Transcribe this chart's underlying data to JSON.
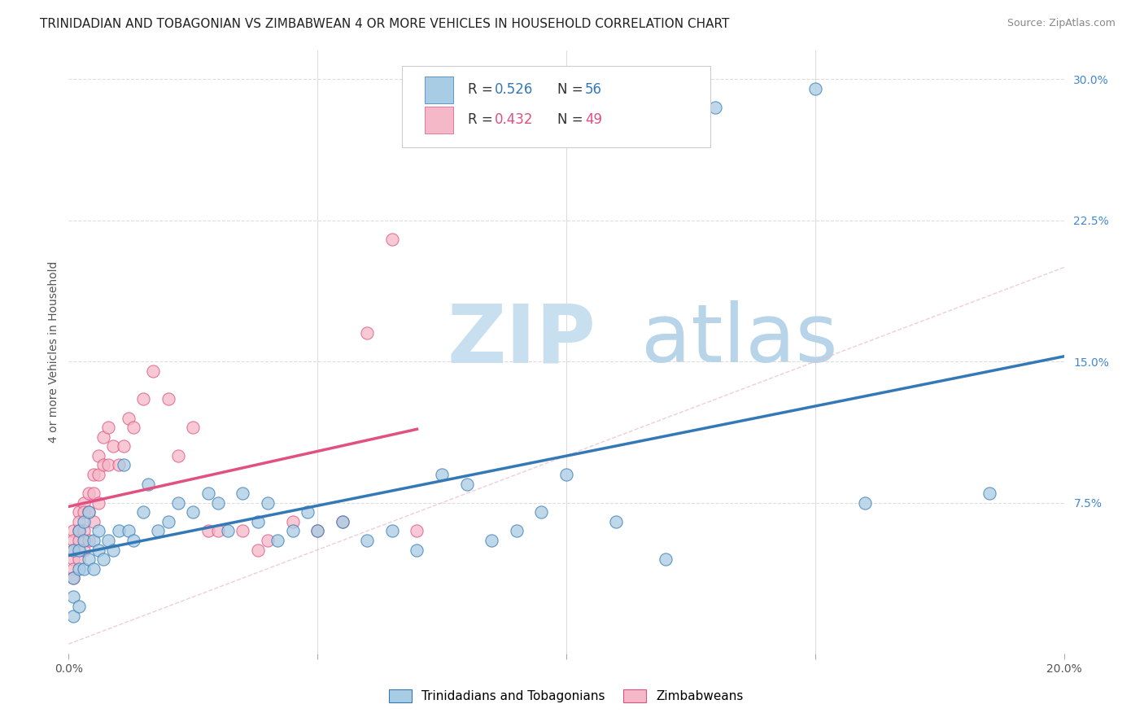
{
  "title": "TRINIDADIAN AND TOBAGONIAN VS ZIMBABWEAN 4 OR MORE VEHICLES IN HOUSEHOLD CORRELATION CHART",
  "source": "Source: ZipAtlas.com",
  "ylabel": "4 or more Vehicles in Household",
  "xlim": [
    0.0,
    0.2
  ],
  "ylim": [
    -0.005,
    0.315
  ],
  "blue_R": 0.526,
  "blue_N": 56,
  "pink_R": 0.432,
  "pink_N": 49,
  "blue_color": "#a8cce4",
  "blue_line_color": "#3478b5",
  "pink_color": "#f4b8c8",
  "pink_line_color": "#e05080",
  "blue_label": "Trinidadians and Tobagonians",
  "pink_label": "Zimbabweans",
  "blue_scatter_x": [
    0.001,
    0.001,
    0.001,
    0.001,
    0.002,
    0.002,
    0.002,
    0.002,
    0.003,
    0.003,
    0.003,
    0.004,
    0.004,
    0.005,
    0.005,
    0.006,
    0.006,
    0.007,
    0.008,
    0.009,
    0.01,
    0.011,
    0.012,
    0.013,
    0.015,
    0.016,
    0.018,
    0.02,
    0.022,
    0.025,
    0.028,
    0.03,
    0.032,
    0.035,
    0.038,
    0.04,
    0.042,
    0.045,
    0.048,
    0.05,
    0.055,
    0.06,
    0.065,
    0.07,
    0.075,
    0.08,
    0.085,
    0.09,
    0.095,
    0.1,
    0.11,
    0.12,
    0.13,
    0.15,
    0.16,
    0.185
  ],
  "blue_scatter_y": [
    0.05,
    0.035,
    0.025,
    0.015,
    0.06,
    0.05,
    0.04,
    0.02,
    0.065,
    0.055,
    0.04,
    0.07,
    0.045,
    0.055,
    0.04,
    0.06,
    0.05,
    0.045,
    0.055,
    0.05,
    0.06,
    0.095,
    0.06,
    0.055,
    0.07,
    0.085,
    0.06,
    0.065,
    0.075,
    0.07,
    0.08,
    0.075,
    0.06,
    0.08,
    0.065,
    0.075,
    0.055,
    0.06,
    0.07,
    0.06,
    0.065,
    0.055,
    0.06,
    0.05,
    0.09,
    0.085,
    0.055,
    0.06,
    0.07,
    0.09,
    0.065,
    0.045,
    0.285,
    0.295,
    0.075,
    0.08
  ],
  "pink_scatter_x": [
    0.001,
    0.001,
    0.001,
    0.001,
    0.001,
    0.001,
    0.002,
    0.002,
    0.002,
    0.002,
    0.002,
    0.003,
    0.003,
    0.003,
    0.003,
    0.004,
    0.004,
    0.004,
    0.005,
    0.005,
    0.005,
    0.006,
    0.006,
    0.006,
    0.007,
    0.007,
    0.008,
    0.008,
    0.009,
    0.01,
    0.011,
    0.012,
    0.013,
    0.015,
    0.017,
    0.02,
    0.022,
    0.025,
    0.028,
    0.03,
    0.035,
    0.038,
    0.04,
    0.045,
    0.05,
    0.055,
    0.06,
    0.065,
    0.07
  ],
  "pink_scatter_y": [
    0.06,
    0.055,
    0.05,
    0.045,
    0.04,
    0.035,
    0.07,
    0.065,
    0.06,
    0.055,
    0.045,
    0.075,
    0.07,
    0.06,
    0.05,
    0.08,
    0.07,
    0.055,
    0.09,
    0.08,
    0.065,
    0.1,
    0.09,
    0.075,
    0.11,
    0.095,
    0.115,
    0.095,
    0.105,
    0.095,
    0.105,
    0.12,
    0.115,
    0.13,
    0.145,
    0.13,
    0.1,
    0.115,
    0.06,
    0.06,
    0.06,
    0.05,
    0.055,
    0.065,
    0.06,
    0.065,
    0.165,
    0.215,
    0.06
  ],
  "watermark_zip": "ZIP",
  "watermark_atlas": "atlas",
  "watermark_color_zip": "#c8dff0",
  "watermark_color_atlas": "#b8d4e8",
  "grid_color": "#dddddd",
  "ref_line_color": "#d0d0d0",
  "title_fontsize": 11,
  "axis_label_fontsize": 10,
  "tick_fontsize": 10,
  "legend_fontsize": 12
}
